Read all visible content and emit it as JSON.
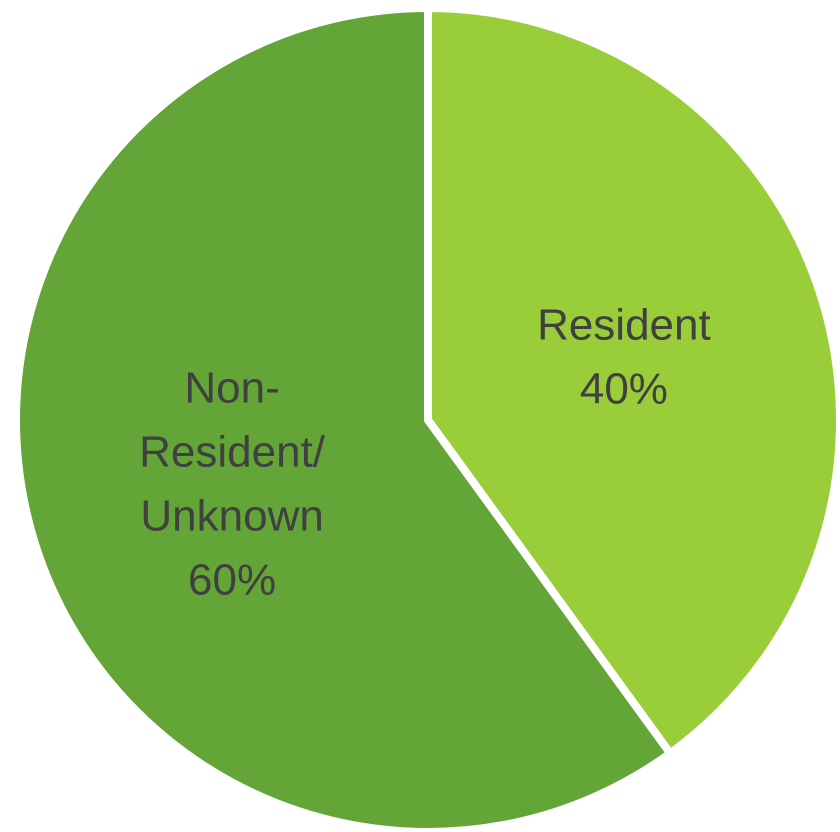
{
  "chart_data": {
    "type": "pie",
    "title": "",
    "slices": [
      {
        "name": "Resident",
        "value": 40,
        "label_lines": [
          "Resident",
          "40%"
        ],
        "color": "#9ACD3A"
      },
      {
        "name": "Non-Resident/Unknown",
        "value": 60,
        "label_lines": [
          "Non-",
          "Resident/",
          "Unknown",
          "60%"
        ],
        "color": "#64A537"
      }
    ],
    "start_angle": "12 o'clock",
    "direction": "clockwise",
    "legend": "none"
  }
}
